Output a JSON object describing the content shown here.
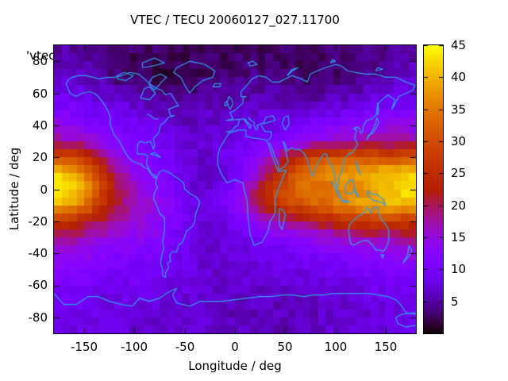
{
  "title": "VTEC / TECU 20060127_027.11700",
  "key_label": "'vtec_",
  "axes": {
    "x": {
      "label": "Longitude / deg",
      "ticks": [
        "-150",
        "-100",
        "-50",
        "0",
        "50",
        "100",
        "150"
      ],
      "range": [
        -180,
        180
      ]
    },
    "y": {
      "label": "Latitude / deg",
      "ticks": [
        "80",
        "60",
        "40",
        "20",
        "0",
        "-20",
        "-40",
        "-60",
        "-80"
      ],
      "range": [
        -90,
        90
      ]
    }
  },
  "colorbar": {
    "ticks": [
      "45",
      "40",
      "35",
      "30",
      "25",
      "20",
      "15",
      "10",
      "5"
    ],
    "range": [
      0,
      45
    ],
    "palette": "gnuplot-pm3d-black-blue-red-yellow"
  },
  "colors": {
    "background": "#ffffff",
    "text": "#000000",
    "coastline": "#2f9ff0",
    "palette_low": "#000000",
    "palette_mid": "#b01e12",
    "palette_high": "#ffff00"
  },
  "chart_data": {
    "type": "heatmap",
    "title": "VTEC / TECU 20060127_027.11700",
    "xlabel": "Longitude / deg",
    "ylabel": "Latitude / deg",
    "units": "TECU",
    "xlim": [
      -180,
      180
    ],
    "ylim": [
      -90,
      90
    ],
    "clim": [
      0,
      45
    ],
    "grid": {
      "lons": [
        -180,
        -165,
        -150,
        -135,
        -120,
        -105,
        -90,
        -75,
        -60,
        -45,
        -30,
        -15,
        0,
        15,
        30,
        45,
        60,
        75,
        90,
        105,
        120,
        135,
        150,
        165,
        180
      ],
      "lats": [
        90,
        80,
        70,
        60,
        50,
        40,
        30,
        20,
        10,
        0,
        -10,
        -20,
        -30,
        -40,
        -50,
        -60,
        -70,
        -80,
        -90
      ],
      "values": [
        [
          5,
          5,
          4,
          4,
          4,
          3,
          3,
          3,
          2,
          2,
          2,
          2,
          3,
          3,
          3,
          3,
          3,
          3,
          3,
          3,
          3,
          4,
          4,
          5,
          5
        ],
        [
          6,
          6,
          5,
          4,
          3,
          3,
          2,
          2,
          2,
          2,
          3,
          3,
          3,
          3,
          3,
          3,
          3,
          3,
          3,
          3,
          4,
          4,
          5,
          5,
          6
        ],
        [
          7,
          7,
          6,
          5,
          4,
          3,
          3,
          2,
          2,
          3,
          3,
          3,
          4,
          4,
          4,
          4,
          3,
          3,
          3,
          3,
          4,
          5,
          6,
          6,
          7
        ],
        [
          9,
          9,
          8,
          7,
          6,
          5,
          4,
          4,
          4,
          4,
          4,
          5,
          5,
          5,
          5,
          5,
          4,
          4,
          5,
          5,
          6,
          7,
          8,
          8,
          9
        ],
        [
          11,
          11,
          10,
          9,
          9,
          8,
          7,
          6,
          5,
          5,
          6,
          6,
          6,
          7,
          7,
          7,
          7,
          7,
          8,
          8,
          9,
          10,
          10,
          11,
          11
        ],
        [
          14,
          13,
          12,
          11,
          10,
          10,
          9,
          8,
          7,
          6,
          7,
          7,
          7,
          8,
          8,
          8,
          9,
          10,
          11,
          12,
          13,
          13,
          14,
          14,
          14
        ],
        [
          18,
          17,
          16,
          14,
          12,
          11,
          10,
          9,
          8,
          7,
          7,
          8,
          9,
          9,
          10,
          11,
          12,
          14,
          15,
          16,
          17,
          17,
          17,
          18,
          18
        ],
        [
          30,
          29,
          26,
          21,
          16,
          13,
          12,
          11,
          9,
          8,
          7,
          8,
          10,
          12,
          15,
          19,
          24,
          28,
          30,
          31,
          32,
          31,
          30,
          30,
          30
        ],
        [
          42,
          41,
          36,
          27,
          20,
          15,
          13,
          11,
          9,
          7,
          5,
          6,
          9,
          13,
          18,
          25,
          31,
          35,
          37,
          39,
          39,
          40,
          41,
          42,
          42
        ],
        [
          44,
          43,
          39,
          30,
          22,
          17,
          14,
          12,
          10,
          8,
          7,
          8,
          12,
          18,
          25,
          30,
          33,
          34,
          34,
          35,
          36,
          38,
          40,
          43,
          44
        ],
        [
          40,
          39,
          35,
          27,
          21,
          18,
          16,
          14,
          12,
          9,
          8,
          9,
          12,
          17,
          22,
          27,
          30,
          32,
          34,
          36,
          38,
          40,
          41,
          40,
          40
        ],
        [
          26,
          25,
          23,
          20,
          18,
          16,
          15,
          14,
          11,
          9,
          7,
          8,
          10,
          12,
          15,
          17,
          19,
          21,
          23,
          25,
          26,
          27,
          27,
          26,
          26
        ],
        [
          19,
          18,
          17,
          16,
          15,
          14,
          13,
          12,
          10,
          8,
          7,
          7,
          8,
          9,
          11,
          12,
          13,
          14,
          15,
          16,
          17,
          18,
          18,
          19,
          19
        ],
        [
          15,
          14,
          14,
          13,
          12,
          12,
          11,
          10,
          9,
          8,
          7,
          7,
          7,
          8,
          9,
          9,
          10,
          10,
          11,
          11,
          12,
          13,
          13,
          14,
          15
        ],
        [
          12,
          12,
          11,
          11,
          10,
          10,
          10,
          9,
          9,
          8,
          7,
          7,
          7,
          7,
          8,
          8,
          8,
          9,
          9,
          9,
          10,
          10,
          11,
          11,
          12
        ],
        [
          10,
          10,
          10,
          9,
          9,
          9,
          9,
          8,
          8,
          8,
          7,
          7,
          7,
          7,
          7,
          7,
          7,
          7,
          8,
          8,
          8,
          9,
          9,
          9,
          10
        ],
        [
          9,
          9,
          9,
          8,
          8,
          8,
          8,
          8,
          7,
          7,
          7,
          6,
          6,
          6,
          6,
          6,
          6,
          6,
          7,
          7,
          7,
          8,
          8,
          8,
          9
        ],
        [
          8,
          8,
          8,
          8,
          8,
          7,
          7,
          7,
          7,
          7,
          7,
          6,
          6,
          6,
          6,
          6,
          6,
          6,
          7,
          7,
          7,
          7,
          8,
          8,
          8
        ],
        [
          8,
          8,
          8,
          8,
          8,
          7,
          7,
          7,
          7,
          7,
          7,
          6,
          6,
          6,
          6,
          6,
          6,
          6,
          7,
          7,
          7,
          7,
          8,
          8,
          8
        ]
      ]
    }
  }
}
